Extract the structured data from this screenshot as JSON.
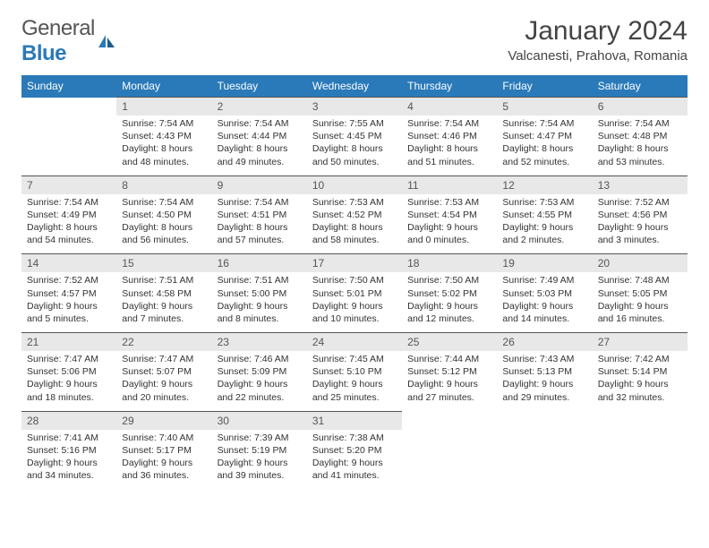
{
  "brand": {
    "part1": "General",
    "part2": "Blue"
  },
  "title": "January 2024",
  "location": "Valcanesti, Prahova, Romania",
  "colors": {
    "header_bg": "#2a7ab9",
    "header_text": "#ffffff",
    "daynum_bg": "#e8e8e8",
    "daynum_border": "#555555",
    "body_text": "#333333"
  },
  "day_headers": [
    "Sunday",
    "Monday",
    "Tuesday",
    "Wednesday",
    "Thursday",
    "Friday",
    "Saturday"
  ],
  "weeks": [
    {
      "nums": [
        "",
        "1",
        "2",
        "3",
        "4",
        "5",
        "6"
      ],
      "cells": [
        null,
        {
          "sunrise": "Sunrise: 7:54 AM",
          "sunset": "Sunset: 4:43 PM",
          "day1": "Daylight: 8 hours",
          "day2": "and 48 minutes."
        },
        {
          "sunrise": "Sunrise: 7:54 AM",
          "sunset": "Sunset: 4:44 PM",
          "day1": "Daylight: 8 hours",
          "day2": "and 49 minutes."
        },
        {
          "sunrise": "Sunrise: 7:55 AM",
          "sunset": "Sunset: 4:45 PM",
          "day1": "Daylight: 8 hours",
          "day2": "and 50 minutes."
        },
        {
          "sunrise": "Sunrise: 7:54 AM",
          "sunset": "Sunset: 4:46 PM",
          "day1": "Daylight: 8 hours",
          "day2": "and 51 minutes."
        },
        {
          "sunrise": "Sunrise: 7:54 AM",
          "sunset": "Sunset: 4:47 PM",
          "day1": "Daylight: 8 hours",
          "day2": "and 52 minutes."
        },
        {
          "sunrise": "Sunrise: 7:54 AM",
          "sunset": "Sunset: 4:48 PM",
          "day1": "Daylight: 8 hours",
          "day2": "and 53 minutes."
        }
      ]
    },
    {
      "nums": [
        "7",
        "8",
        "9",
        "10",
        "11",
        "12",
        "13"
      ],
      "cells": [
        {
          "sunrise": "Sunrise: 7:54 AM",
          "sunset": "Sunset: 4:49 PM",
          "day1": "Daylight: 8 hours",
          "day2": "and 54 minutes."
        },
        {
          "sunrise": "Sunrise: 7:54 AM",
          "sunset": "Sunset: 4:50 PM",
          "day1": "Daylight: 8 hours",
          "day2": "and 56 minutes."
        },
        {
          "sunrise": "Sunrise: 7:54 AM",
          "sunset": "Sunset: 4:51 PM",
          "day1": "Daylight: 8 hours",
          "day2": "and 57 minutes."
        },
        {
          "sunrise": "Sunrise: 7:53 AM",
          "sunset": "Sunset: 4:52 PM",
          "day1": "Daylight: 8 hours",
          "day2": "and 58 minutes."
        },
        {
          "sunrise": "Sunrise: 7:53 AM",
          "sunset": "Sunset: 4:54 PM",
          "day1": "Daylight: 9 hours",
          "day2": "and 0 minutes."
        },
        {
          "sunrise": "Sunrise: 7:53 AM",
          "sunset": "Sunset: 4:55 PM",
          "day1": "Daylight: 9 hours",
          "day2": "and 2 minutes."
        },
        {
          "sunrise": "Sunrise: 7:52 AM",
          "sunset": "Sunset: 4:56 PM",
          "day1": "Daylight: 9 hours",
          "day2": "and 3 minutes."
        }
      ]
    },
    {
      "nums": [
        "14",
        "15",
        "16",
        "17",
        "18",
        "19",
        "20"
      ],
      "cells": [
        {
          "sunrise": "Sunrise: 7:52 AM",
          "sunset": "Sunset: 4:57 PM",
          "day1": "Daylight: 9 hours",
          "day2": "and 5 minutes."
        },
        {
          "sunrise": "Sunrise: 7:51 AM",
          "sunset": "Sunset: 4:58 PM",
          "day1": "Daylight: 9 hours",
          "day2": "and 7 minutes."
        },
        {
          "sunrise": "Sunrise: 7:51 AM",
          "sunset": "Sunset: 5:00 PM",
          "day1": "Daylight: 9 hours",
          "day2": "and 8 minutes."
        },
        {
          "sunrise": "Sunrise: 7:50 AM",
          "sunset": "Sunset: 5:01 PM",
          "day1": "Daylight: 9 hours",
          "day2": "and 10 minutes."
        },
        {
          "sunrise": "Sunrise: 7:50 AM",
          "sunset": "Sunset: 5:02 PM",
          "day1": "Daylight: 9 hours",
          "day2": "and 12 minutes."
        },
        {
          "sunrise": "Sunrise: 7:49 AM",
          "sunset": "Sunset: 5:03 PM",
          "day1": "Daylight: 9 hours",
          "day2": "and 14 minutes."
        },
        {
          "sunrise": "Sunrise: 7:48 AM",
          "sunset": "Sunset: 5:05 PM",
          "day1": "Daylight: 9 hours",
          "day2": "and 16 minutes."
        }
      ]
    },
    {
      "nums": [
        "21",
        "22",
        "23",
        "24",
        "25",
        "26",
        "27"
      ],
      "cells": [
        {
          "sunrise": "Sunrise: 7:47 AM",
          "sunset": "Sunset: 5:06 PM",
          "day1": "Daylight: 9 hours",
          "day2": "and 18 minutes."
        },
        {
          "sunrise": "Sunrise: 7:47 AM",
          "sunset": "Sunset: 5:07 PM",
          "day1": "Daylight: 9 hours",
          "day2": "and 20 minutes."
        },
        {
          "sunrise": "Sunrise: 7:46 AM",
          "sunset": "Sunset: 5:09 PM",
          "day1": "Daylight: 9 hours",
          "day2": "and 22 minutes."
        },
        {
          "sunrise": "Sunrise: 7:45 AM",
          "sunset": "Sunset: 5:10 PM",
          "day1": "Daylight: 9 hours",
          "day2": "and 25 minutes."
        },
        {
          "sunrise": "Sunrise: 7:44 AM",
          "sunset": "Sunset: 5:12 PM",
          "day1": "Daylight: 9 hours",
          "day2": "and 27 minutes."
        },
        {
          "sunrise": "Sunrise: 7:43 AM",
          "sunset": "Sunset: 5:13 PM",
          "day1": "Daylight: 9 hours",
          "day2": "and 29 minutes."
        },
        {
          "sunrise": "Sunrise: 7:42 AM",
          "sunset": "Sunset: 5:14 PM",
          "day1": "Daylight: 9 hours",
          "day2": "and 32 minutes."
        }
      ]
    },
    {
      "nums": [
        "28",
        "29",
        "30",
        "31",
        "",
        "",
        ""
      ],
      "cells": [
        {
          "sunrise": "Sunrise: 7:41 AM",
          "sunset": "Sunset: 5:16 PM",
          "day1": "Daylight: 9 hours",
          "day2": "and 34 minutes."
        },
        {
          "sunrise": "Sunrise: 7:40 AM",
          "sunset": "Sunset: 5:17 PM",
          "day1": "Daylight: 9 hours",
          "day2": "and 36 minutes."
        },
        {
          "sunrise": "Sunrise: 7:39 AM",
          "sunset": "Sunset: 5:19 PM",
          "day1": "Daylight: 9 hours",
          "day2": "and 39 minutes."
        },
        {
          "sunrise": "Sunrise: 7:38 AM",
          "sunset": "Sunset: 5:20 PM",
          "day1": "Daylight: 9 hours",
          "day2": "and 41 minutes."
        },
        null,
        null,
        null
      ]
    }
  ]
}
